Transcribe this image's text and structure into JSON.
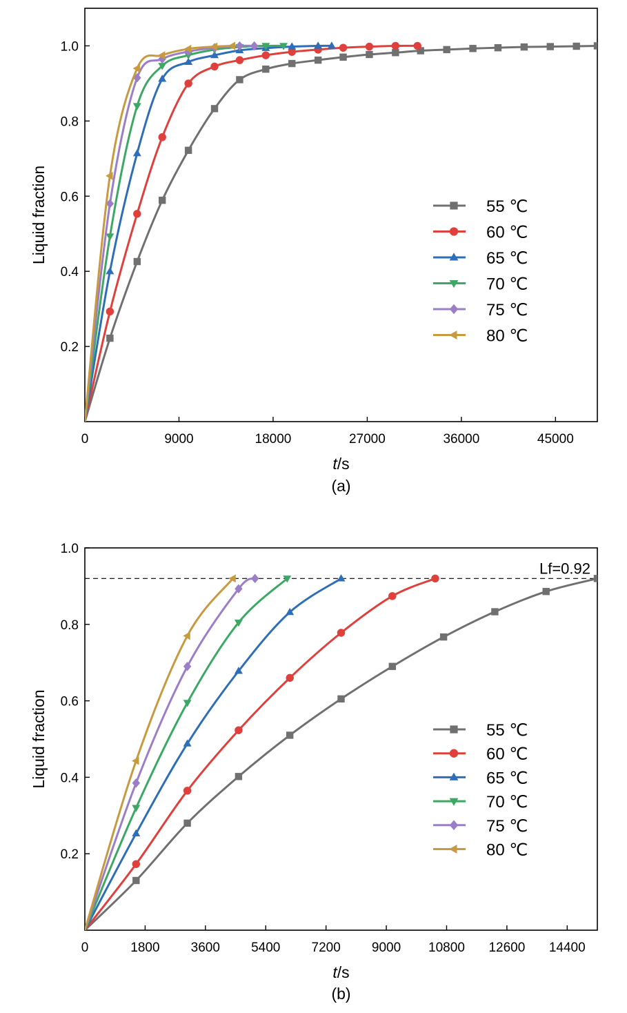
{
  "figure": {
    "unit_symbol": "℃"
  },
  "chart_data": [
    {
      "type": "line",
      "panel_label": "(a)",
      "xlabel_italic": "t",
      "xlabel_unit": "/s",
      "ylabel": "Liquid  fraction",
      "xlim": [
        0,
        49000
      ],
      "ylim": [
        0,
        1.1
      ],
      "xticks": [
        0,
        9000,
        18000,
        27000,
        36000,
        45000
      ],
      "yticks": [
        0.2,
        0.4,
        0.6,
        0.8,
        1.0
      ],
      "ytick_labels": [
        "0.2",
        "0.4",
        "0.6",
        "0.8",
        "1.0"
      ],
      "legend_position": "center-right",
      "series": [
        {
          "name": "55",
          "color": "#707070",
          "marker": "square",
          "x": [
            0,
            2400,
            5000,
            7400,
            9900,
            12400,
            14800,
            17300,
            19800,
            22300,
            24700,
            27200,
            29700,
            32100,
            34600,
            37100,
            39500,
            42000,
            44500,
            47000,
            49000
          ],
          "y": [
            0,
            0.222,
            0.426,
            0.589,
            0.722,
            0.833,
            0.91,
            0.938,
            0.953,
            0.962,
            0.97,
            0.977,
            0.982,
            0.987,
            0.99,
            0.993,
            0.995,
            0.997,
            0.998,
            0.999,
            1.0
          ]
        },
        {
          "name": "60",
          "color": "#e0403c",
          "marker": "circle",
          "x": [
            0,
            2400,
            5000,
            7400,
            9900,
            12400,
            14800,
            17300,
            19800,
            22300,
            24700,
            27200,
            29700,
            31800
          ],
          "y": [
            0,
            0.293,
            0.553,
            0.757,
            0.9,
            0.945,
            0.962,
            0.975,
            0.984,
            0.99,
            0.995,
            0.998,
            1.0,
            1.0
          ]
        },
        {
          "name": "65",
          "color": "#2e6eb8",
          "marker": "triangle-up",
          "x": [
            0,
            2400,
            5000,
            7400,
            9900,
            12400,
            14800,
            17300,
            19800,
            22300,
            23600
          ],
          "y": [
            0,
            0.4,
            0.714,
            0.912,
            0.957,
            0.975,
            0.988,
            0.994,
            0.998,
            1.0,
            1.0
          ]
        },
        {
          "name": "70",
          "color": "#3ca864",
          "marker": "triangle-down",
          "x": [
            0,
            2400,
            5000,
            7400,
            9900,
            12400,
            14800,
            17300,
            19000
          ],
          "y": [
            0,
            0.493,
            0.84,
            0.947,
            0.975,
            0.99,
            0.997,
            1.0,
            1.0
          ]
        },
        {
          "name": "75",
          "color": "#9b7ec8",
          "marker": "diamond",
          "x": [
            0,
            2400,
            5000,
            7400,
            9900,
            12400,
            14800,
            16200
          ],
          "y": [
            0,
            0.58,
            0.915,
            0.965,
            0.985,
            0.995,
            1.0,
            1.0
          ]
        },
        {
          "name": "80",
          "color": "#c89a40",
          "marker": "triangle-left",
          "x": [
            0,
            2400,
            5000,
            7400,
            9900,
            12400,
            14100
          ],
          "y": [
            0,
            0.654,
            0.94,
            0.975,
            0.992,
            0.998,
            1.0
          ]
        }
      ]
    },
    {
      "type": "line",
      "panel_label": "(b)",
      "xlabel_italic": "t",
      "xlabel_unit": "/s",
      "ylabel": "Liquid  fraction",
      "xlim": [
        0,
        15300
      ],
      "ylim": [
        0,
        1.0
      ],
      "xticks": [
        0,
        1800,
        3600,
        5400,
        7200,
        9000,
        10800,
        12600,
        14400
      ],
      "yticks": [
        0.2,
        0.4,
        0.6,
        0.8,
        1.0
      ],
      "ytick_labels": [
        "0.2",
        "0.4",
        "0.6",
        "0.8",
        "1.0"
      ],
      "legend_position": "center-right",
      "reference_line": {
        "y": 0.92,
        "label": "Lf=0.92",
        "style": "dashed"
      },
      "series": [
        {
          "name": "55",
          "color": "#707070",
          "marker": "square",
          "x": [
            0,
            1530,
            3060,
            4590,
            6120,
            7650,
            9180,
            10710,
            12240,
            13770,
            15300
          ],
          "y": [
            0,
            0.13,
            0.28,
            0.402,
            0.51,
            0.605,
            0.69,
            0.767,
            0.833,
            0.886,
            0.92
          ]
        },
        {
          "name": "60",
          "color": "#e0403c",
          "marker": "circle",
          "x": [
            0,
            1530,
            3060,
            4590,
            6120,
            7650,
            9180,
            10460
          ],
          "y": [
            0,
            0.173,
            0.365,
            0.523,
            0.66,
            0.778,
            0.874,
            0.92
          ]
        },
        {
          "name": "65",
          "color": "#2e6eb8",
          "marker": "triangle-up",
          "x": [
            0,
            1530,
            3060,
            4590,
            6120,
            7650
          ],
          "y": [
            0,
            0.253,
            0.488,
            0.678,
            0.832,
            0.92
          ]
        },
        {
          "name": "70",
          "color": "#3ca864",
          "marker": "triangle-down",
          "x": [
            0,
            1530,
            3060,
            4590,
            6040
          ],
          "y": [
            0,
            0.32,
            0.595,
            0.805,
            0.92
          ]
        },
        {
          "name": "75",
          "color": "#9b7ec8",
          "marker": "diamond",
          "x": [
            0,
            1530,
            3060,
            4590,
            5080
          ],
          "y": [
            0,
            0.385,
            0.69,
            0.893,
            0.92
          ]
        },
        {
          "name": "80",
          "color": "#c89a40",
          "marker": "triangle-left",
          "x": [
            0,
            1530,
            3060,
            4420
          ],
          "y": [
            0,
            0.443,
            0.77,
            0.92
          ]
        }
      ]
    }
  ]
}
